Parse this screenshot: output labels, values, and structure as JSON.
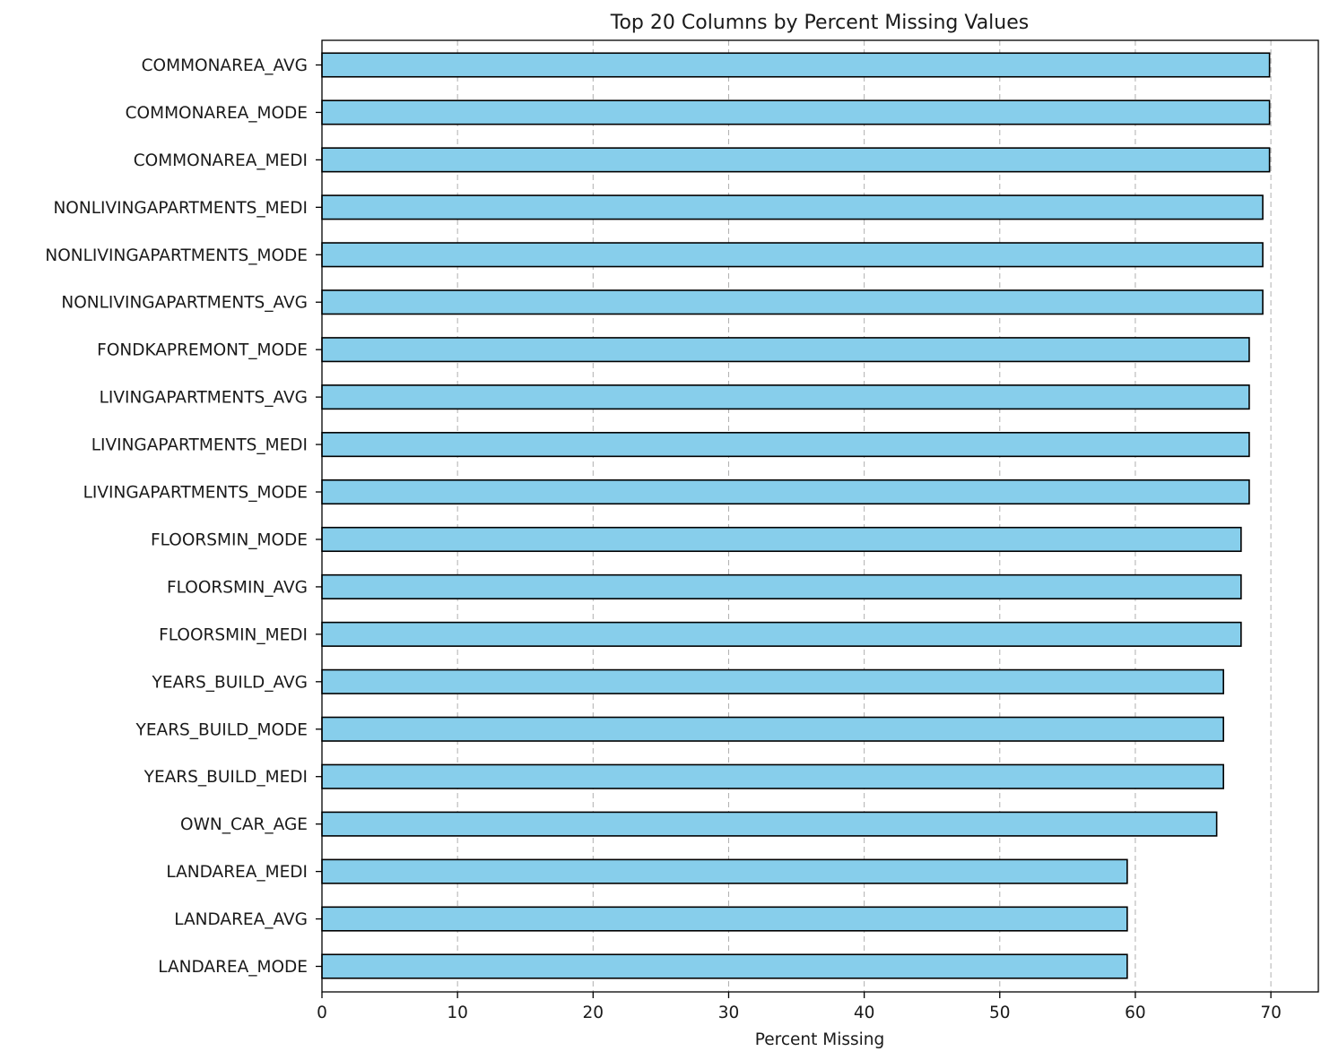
{
  "chart_data": {
    "type": "bar",
    "orientation": "horizontal",
    "title": "Top 20 Columns by Percent Missing Values",
    "xlabel": "Percent Missing",
    "ylabel": "",
    "xlim": [
      0,
      73.5
    ],
    "xticks": [
      0,
      10,
      20,
      30,
      40,
      50,
      60,
      70
    ],
    "grid": "x, dashed",
    "colors": {
      "bar_fill": "#87ceeb",
      "bar_edge": "#000000"
    },
    "categories": [
      "COMMONAREA_AVG",
      "COMMONAREA_MODE",
      "COMMONAREA_MEDI",
      "NONLIVINGAPARTMENTS_MEDI",
      "NONLIVINGAPARTMENTS_MODE",
      "NONLIVINGAPARTMENTS_AVG",
      "FONDKAPREMONT_MODE",
      "LIVINGAPARTMENTS_AVG",
      "LIVINGAPARTMENTS_MEDI",
      "LIVINGAPARTMENTS_MODE",
      "FLOORSMIN_MODE",
      "FLOORSMIN_AVG",
      "FLOORSMIN_MEDI",
      "YEARS_BUILD_AVG",
      "YEARS_BUILD_MODE",
      "YEARS_BUILD_MEDI",
      "OWN_CAR_AGE",
      "LANDAREA_MEDI",
      "LANDAREA_AVG",
      "LANDAREA_MODE"
    ],
    "values": [
      69.9,
      69.9,
      69.9,
      69.4,
      69.4,
      69.4,
      68.4,
      68.4,
      68.4,
      68.4,
      67.8,
      67.8,
      67.8,
      66.5,
      66.5,
      66.5,
      66.0,
      59.4,
      59.4,
      59.4
    ]
  }
}
